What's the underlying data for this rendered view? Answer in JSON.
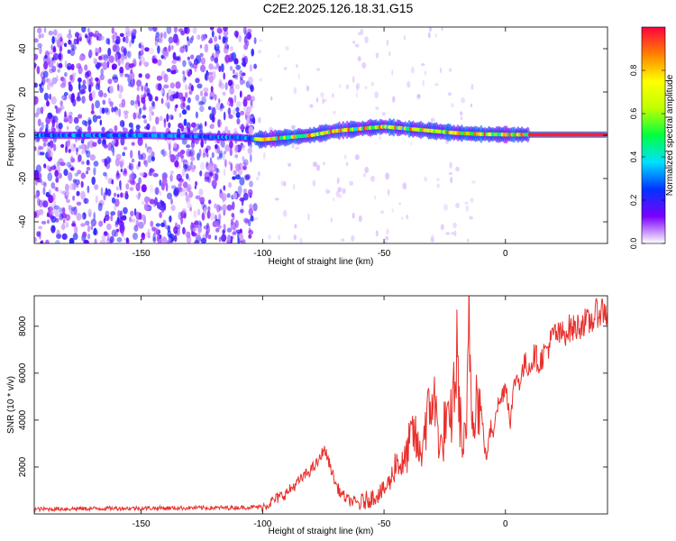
{
  "title": "C2E2.2025.126.18.31.G15",
  "chart_data": [
    {
      "type": "heatmap",
      "xlabel": "Height of straight line (km)",
      "ylabel": "Frequency (Hz)",
      "xlim": [
        -194,
        42
      ],
      "ylim": [
        -50,
        50
      ],
      "xticks": [
        -150,
        -100,
        -50,
        0
      ],
      "yticks": [
        -40,
        -20,
        0,
        20,
        40
      ],
      "colorbar": {
        "label": "Normalized spectral amplitude",
        "range": [
          0,
          1
        ],
        "ticks": [
          0.0,
          0.2,
          0.4,
          0.6,
          0.8
        ],
        "tick_labels": [
          "0.0",
          "0.2",
          "0.4",
          "0.6",
          "0.8"
        ],
        "colormap": "rainbow",
        "stops": [
          "#ffffff",
          "#7a00ff",
          "#0033ff",
          "#00e0ff",
          "#00ff40",
          "#c0ff00",
          "#ffff00",
          "#ff8000",
          "#ff0040"
        ]
      },
      "signal_track": [
        {
          "x": -194,
          "f": 0
        },
        {
          "x": -150,
          "f": 0
        },
        {
          "x": -110,
          "f": -1
        },
        {
          "x": -100,
          "f": -2
        },
        {
          "x": -90,
          "f": -1
        },
        {
          "x": -80,
          "f": 0
        },
        {
          "x": -70,
          "f": 2
        },
        {
          "x": -60,
          "f": 3
        },
        {
          "x": -50,
          "f": 4
        },
        {
          "x": -40,
          "f": 3
        },
        {
          "x": -30,
          "f": 2
        },
        {
          "x": -20,
          "f": 1
        },
        {
          "x": -10,
          "f": 0.5
        },
        {
          "x": 0,
          "f": 0.3
        },
        {
          "x": 20,
          "f": 0.3
        },
        {
          "x": 42,
          "f": 0.3
        }
      ]
    },
    {
      "type": "line",
      "xlabel": "Height of straight line (km)",
      "ylabel": "SNR (10 * v/v)",
      "xlim": [
        -194,
        42
      ],
      "ylim": [
        0,
        9300
      ],
      "xticks": [
        -150,
        -100,
        -50,
        0
      ],
      "yticks": [
        2000,
        4000,
        6000,
        8000
      ],
      "line_color": "#e8302c",
      "series": [
        {
          "x": [
            -194,
            -180,
            -160,
            -140,
            -120,
            -110,
            -100,
            -95,
            -90,
            -85,
            -80,
            -78,
            -76,
            -75,
            -74,
            -72,
            -70,
            -68,
            -65,
            -62,
            -60,
            -55,
            -50,
            -47,
            -45,
            -42,
            -40,
            -38,
            -35,
            -33,
            -31,
            -30,
            -28,
            -26,
            -25,
            -23,
            -20,
            -18,
            -16,
            -15,
            -14,
            -12,
            -10,
            -8,
            -6,
            -5,
            -4,
            -2,
            0,
            2,
            4,
            6,
            8,
            10,
            12,
            14,
            16,
            18,
            20,
            22,
            24,
            26,
            28,
            30,
            32,
            34,
            36,
            38,
            40,
            42
          ],
          "y": [
            200,
            220,
            240,
            250,
            260,
            270,
            300,
            600,
            900,
            1400,
            1900,
            2100,
            2400,
            2800,
            2600,
            2000,
            1300,
            900,
            600,
            500,
            450,
            700,
            1000,
            1500,
            2300,
            2000,
            2800,
            3500,
            2400,
            3900,
            4300,
            5300,
            3700,
            2600,
            4000,
            3500,
            6600,
            2900,
            3100,
            9100,
            4300,
            5100,
            4400,
            2300,
            3700,
            3500,
            4500,
            4800,
            5600,
            4000,
            5800,
            5700,
            6400,
            6300,
            6800,
            6400,
            6900,
            7200,
            7700,
            7600,
            7700,
            7900,
            7900,
            8000,
            8200,
            8100,
            8300,
            8600,
            8700,
            8500
          ]
        }
      ]
    }
  ]
}
